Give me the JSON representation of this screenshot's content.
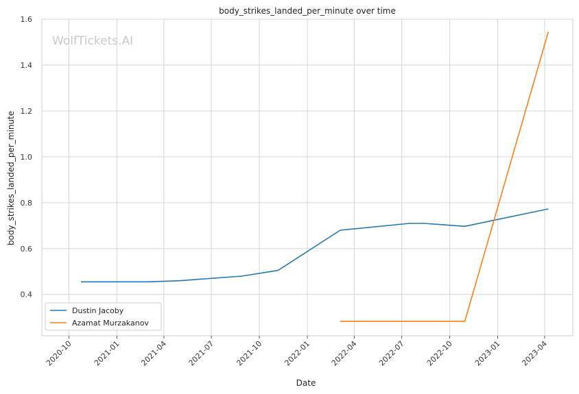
{
  "watermark": "WolfTickets.AI",
  "chart_data": {
    "type": "line",
    "title": "body_strikes_landed_per_minute over time",
    "xlabel": "Date",
    "ylabel": "body_strikes_landed_per_minute",
    "x_ticks": [
      "2020-10",
      "2021-01",
      "2021-04",
      "2021-07",
      "2021-10",
      "2022-01",
      "2022-04",
      "2022-07",
      "2022-10",
      "2023-01",
      "2023-04"
    ],
    "y_ticks": [
      "0.4",
      "0.6",
      "0.8",
      "1.0",
      "1.2",
      "1.4",
      "1.6"
    ],
    "ylim": [
      0.22,
      1.6
    ],
    "grid": true,
    "legend_position": "lower-left",
    "series": [
      {
        "name": "Dustin Jacoby",
        "color": "#1f77b4",
        "x": [
          "2020-10-24",
          "2020-12-15",
          "2021-03-01",
          "2021-05-01",
          "2021-08-28",
          "2021-11-06",
          "2022-03-05",
          "2022-07-16",
          "2022-08-13",
          "2022-10-30",
          "2023-04-08"
        ],
        "y": [
          0.455,
          0.455,
          0.455,
          0.46,
          0.48,
          0.505,
          0.68,
          0.71,
          0.71,
          0.697,
          0.773
        ]
      },
      {
        "name": "Azamat Murzakanov",
        "color": "#ff7f0e",
        "x": [
          "2022-03-05",
          "2022-10-30",
          "2023-04-08"
        ],
        "y": [
          0.283,
          0.283,
          1.545
        ]
      }
    ]
  }
}
